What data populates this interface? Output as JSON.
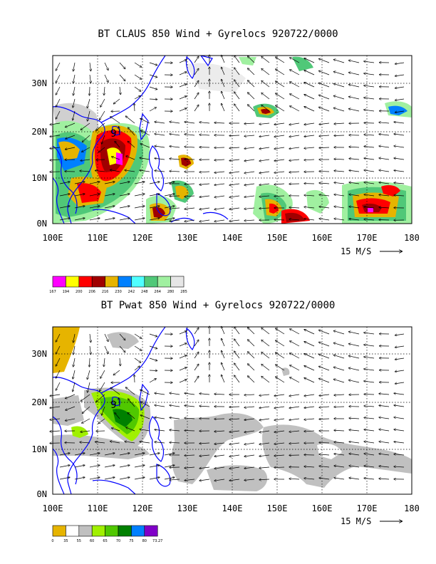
{
  "panels": [
    {
      "title": "BT CLAUS 850 Wind + Gyrelocs 920722/0000",
      "field": "CLAUS brightness temperature",
      "lat_labels": [
        "30N",
        "20N",
        "10N",
        "0N"
      ],
      "lon_labels": [
        "100E",
        "110E",
        "120E",
        "130E",
        "140E",
        "150E",
        "160E",
        "170E",
        "180"
      ],
      "vector_reference": "15 M/S",
      "legend": {
        "values": [
          "167",
          "194",
          "200",
          "206",
          "216",
          "230",
          "242",
          "248",
          "264",
          "280",
          "285"
        ],
        "colors": [
          "#ff00ff",
          "#ffff00",
          "#ff0000",
          "#a00000",
          "#e6b400",
          "#0080ff",
          "#50ffff",
          "#50c878",
          "#a0f0a0",
          "#e6e6e6"
        ]
      }
    },
    {
      "title": "BT Pwat 850 Wind + Gyrelocs 920722/0000",
      "field": "precipitable water",
      "lat_labels": [
        "30N",
        "20N",
        "10N",
        "0N"
      ],
      "lon_labels": [
        "100E",
        "110E",
        "120E",
        "130E",
        "140E",
        "150E",
        "160E",
        "170E",
        "180"
      ],
      "vector_reference": "15 M/S",
      "legend": {
        "values": [
          "0",
          "35",
          "55",
          "60",
          "65",
          "70",
          "75",
          "80",
          "73.27"
        ],
        "colors": [
          "#e6b400",
          "#ffffff",
          "#c0c0c0",
          "#a0f000",
          "#50c800",
          "#008000",
          "#0080ff",
          "#8000c8"
        ]
      }
    }
  ],
  "gyre_marker": "9",
  "colors": {
    "coastline": "#0000ff",
    "frame": "#000000",
    "dotted_grid": "#000000"
  }
}
